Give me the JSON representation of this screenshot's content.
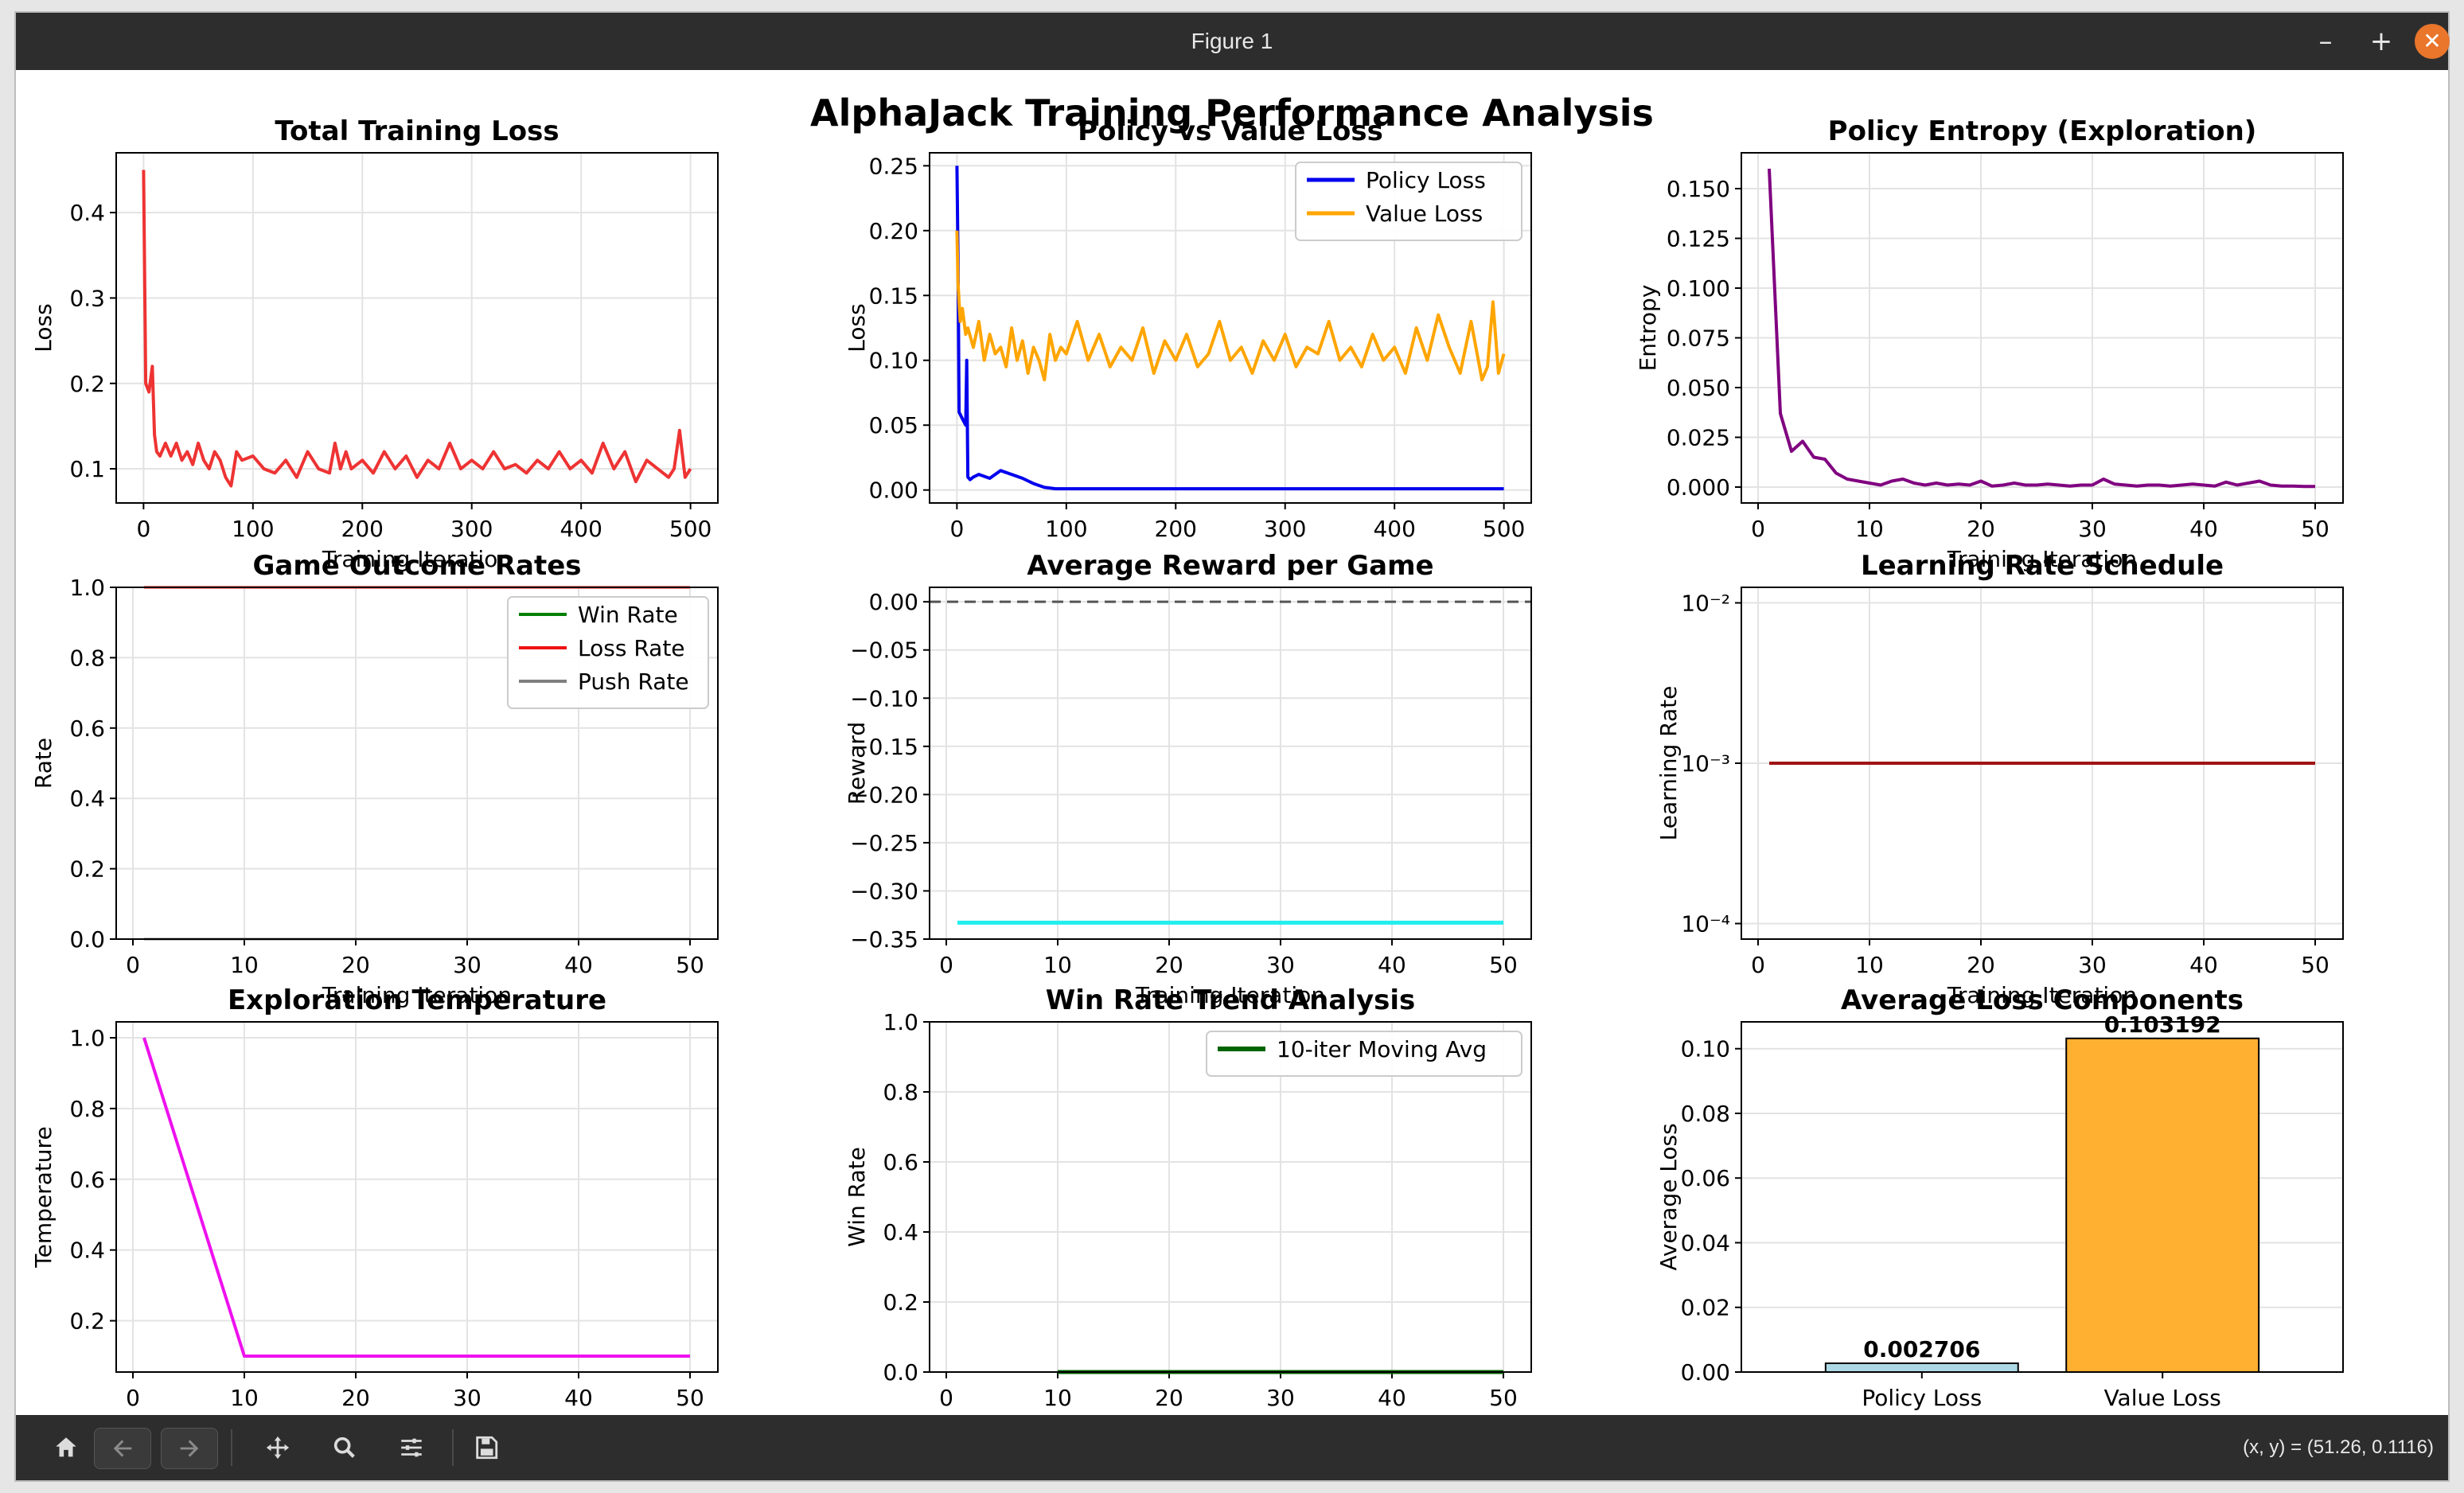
{
  "window": {
    "title": "Figure 1"
  },
  "figure": {
    "suptitle": "AlphaJack Training Performance Analysis"
  },
  "toolbar": {
    "buttons": [
      "home-icon",
      "back-icon",
      "forward-icon",
      "pan-icon",
      "zoom-icon",
      "configure-icon",
      "save-icon"
    ],
    "coords": "(x, y) = (51.26, 0.1116)"
  },
  "chart_data": [
    {
      "id": "c1",
      "type": "line",
      "title": "Total Training Loss",
      "xlabel": "Training Iteration",
      "ylabel": "Loss",
      "xlim": [
        -25,
        525
      ],
      "ylim": [
        0.06,
        0.47
      ],
      "grid": true,
      "xticks": [
        0,
        100,
        200,
        300,
        400,
        500
      ],
      "xtick_labels": [
        "0",
        "100",
        "200",
        "300",
        "400",
        "500"
      ],
      "yticks": [
        0.1,
        0.2,
        0.3,
        0.4
      ],
      "ytick_labels": [
        "0.1",
        "0.2",
        "0.3",
        "0.4"
      ],
      "series": [
        {
          "color": "#ee3333",
          "width": 4,
          "x": [
            0,
            2,
            5,
            8,
            10,
            12,
            15,
            20,
            25,
            30,
            35,
            40,
            45,
            50,
            55,
            60,
            65,
            70,
            75,
            80,
            85,
            90,
            100,
            110,
            120,
            130,
            140,
            150,
            160,
            170,
            175,
            180,
            185,
            190,
            200,
            210,
            220,
            230,
            240,
            250,
            260,
            270,
            280,
            290,
            300,
            310,
            320,
            330,
            340,
            350,
            360,
            370,
            380,
            390,
            400,
            410,
            420,
            430,
            440,
            450,
            460,
            470,
            480,
            485,
            490,
            495,
            500
          ],
          "y": [
            0.45,
            0.2,
            0.19,
            0.22,
            0.14,
            0.12,
            0.115,
            0.13,
            0.115,
            0.13,
            0.11,
            0.12,
            0.105,
            0.13,
            0.11,
            0.1,
            0.12,
            0.11,
            0.09,
            0.08,
            0.12,
            0.11,
            0.115,
            0.1,
            0.095,
            0.11,
            0.09,
            0.12,
            0.1,
            0.095,
            0.13,
            0.1,
            0.12,
            0.1,
            0.11,
            0.095,
            0.12,
            0.1,
            0.115,
            0.09,
            0.11,
            0.1,
            0.13,
            0.1,
            0.11,
            0.1,
            0.12,
            0.1,
            0.105,
            0.095,
            0.11,
            0.1,
            0.12,
            0.1,
            0.11,
            0.095,
            0.13,
            0.1,
            0.12,
            0.085,
            0.11,
            0.1,
            0.09,
            0.1,
            0.145,
            0.09,
            0.1
          ]
        }
      ]
    },
    {
      "id": "c2",
      "type": "line",
      "title": "Policy vs Value Loss",
      "xlabel": "",
      "ylabel": "Loss",
      "xlim": [
        -25,
        525
      ],
      "ylim": [
        -0.01,
        0.26
      ],
      "grid": true,
      "xticks": [
        0,
        100,
        200,
        300,
        400,
        500
      ],
      "xtick_labels": [
        "0",
        "100",
        "200",
        "300",
        "400",
        "500"
      ],
      "yticks": [
        0,
        0.05,
        0.1,
        0.15,
        0.2,
        0.25
      ],
      "ytick_labels": [
        "0.00",
        "0.05",
        "0.10",
        "0.15",
        "0.20",
        "0.25"
      ],
      "legend": {
        "position": "top-right",
        "labels": [
          "Policy Loss",
          "Value Loss"
        ]
      },
      "series": [
        {
          "name": "Policy Loss",
          "color": "#0000ee",
          "width": 4,
          "x": [
            0,
            1,
            2,
            5,
            8,
            9,
            10,
            12,
            15,
            20,
            30,
            40,
            50,
            60,
            70,
            80,
            90,
            100,
            500
          ],
          "y": [
            0.25,
            0.18,
            0.06,
            0.055,
            0.05,
            0.1,
            0.01,
            0.008,
            0.01,
            0.012,
            0.009,
            0.015,
            0.012,
            0.009,
            0.005,
            0.002,
            0.001,
            0.001,
            0.001
          ]
        },
        {
          "name": "Value Loss",
          "color": "#ffa500",
          "width": 4,
          "x": [
            0,
            1,
            3,
            5,
            8,
            10,
            15,
            20,
            25,
            30,
            35,
            40,
            45,
            50,
            55,
            60,
            65,
            70,
            75,
            80,
            85,
            90,
            95,
            100,
            110,
            120,
            130,
            140,
            150,
            160,
            170,
            180,
            190,
            200,
            210,
            220,
            230,
            240,
            250,
            260,
            270,
            280,
            290,
            300,
            310,
            320,
            330,
            340,
            350,
            360,
            370,
            380,
            390,
            400,
            410,
            420,
            430,
            440,
            450,
            460,
            470,
            480,
            485,
            490,
            495,
            500
          ],
          "y": [
            0.2,
            0.16,
            0.13,
            0.14,
            0.12,
            0.125,
            0.11,
            0.13,
            0.1,
            0.12,
            0.105,
            0.11,
            0.095,
            0.125,
            0.1,
            0.115,
            0.09,
            0.11,
            0.1,
            0.085,
            0.12,
            0.1,
            0.11,
            0.105,
            0.13,
            0.1,
            0.12,
            0.095,
            0.11,
            0.1,
            0.125,
            0.09,
            0.115,
            0.1,
            0.12,
            0.095,
            0.105,
            0.13,
            0.1,
            0.11,
            0.09,
            0.115,
            0.1,
            0.12,
            0.095,
            0.11,
            0.105,
            0.13,
            0.1,
            0.11,
            0.095,
            0.12,
            0.1,
            0.11,
            0.09,
            0.125,
            0.1,
            0.135,
            0.11,
            0.09,
            0.13,
            0.085,
            0.095,
            0.145,
            0.09,
            0.105
          ]
        }
      ]
    },
    {
      "id": "c3",
      "type": "line",
      "title": "Policy Entropy (Exploration)",
      "xlabel": "Training Iteration",
      "ylabel": "Entropy",
      "xlim": [
        -1.5,
        52.5
      ],
      "ylim": [
        -0.008,
        0.168
      ],
      "grid": true,
      "xticks": [
        0,
        10,
        20,
        30,
        40,
        50
      ],
      "xtick_labels": [
        "0",
        "10",
        "20",
        "30",
        "40",
        "50"
      ],
      "yticks": [
        0,
        0.025,
        0.05,
        0.075,
        0.1,
        0.125,
        0.15
      ],
      "ytick_labels": [
        "0.000",
        "0.025",
        "0.050",
        "0.075",
        "0.100",
        "0.125",
        "0.150"
      ],
      "series": [
        {
          "color": "#800080",
          "width": 4,
          "x": [
            1,
            2,
            3,
            4,
            5,
            6,
            7,
            8,
            9,
            10,
            11,
            12,
            13,
            14,
            15,
            16,
            17,
            18,
            19,
            20,
            21,
            22,
            23,
            24,
            25,
            26,
            27,
            28,
            29,
            30,
            31,
            32,
            33,
            34,
            35,
            36,
            37,
            38,
            39,
            40,
            41,
            42,
            43,
            44,
            45,
            46,
            47,
            48,
            49,
            50
          ],
          "y": [
            0.16,
            0.037,
            0.018,
            0.023,
            0.015,
            0.014,
            0.007,
            0.004,
            0.003,
            0.002,
            0.001,
            0.003,
            0.004,
            0.002,
            0.001,
            0.002,
            0.001,
            0.0015,
            0.001,
            0.003,
            0.0005,
            0.001,
            0.002,
            0.001,
            0.001,
            0.0015,
            0.001,
            0.0005,
            0.001,
            0.001,
            0.004,
            0.0015,
            0.001,
            0.0005,
            0.001,
            0.001,
            0.0005,
            0.001,
            0.0015,
            0.001,
            0.0005,
            0.0025,
            0.001,
            0.002,
            0.003,
            0.001,
            0.0005,
            0.0005,
            0.0003,
            0.0003
          ]
        }
      ]
    },
    {
      "id": "c4",
      "type": "line",
      "title": "Game Outcome Rates",
      "xlabel": "Training Iteration",
      "ylabel": "Rate",
      "xlim": [
        -1.5,
        52.5
      ],
      "ylim": [
        0,
        1
      ],
      "grid": true,
      "xticks": [
        0,
        10,
        20,
        30,
        40,
        50
      ],
      "xtick_labels": [
        "0",
        "10",
        "20",
        "30",
        "40",
        "50"
      ],
      "yticks": [
        0,
        0.2,
        0.4,
        0.6,
        0.8,
        1.0
      ],
      "ytick_labels": [
        "0.0",
        "0.2",
        "0.4",
        "0.6",
        "0.8",
        "1.0"
      ],
      "legend": {
        "position": "top-right",
        "labels": [
          "Win Rate",
          "Loss Rate",
          "Push Rate"
        ]
      },
      "series": [
        {
          "name": "Win Rate",
          "color": "#008000",
          "width": 3,
          "x": [
            1,
            50
          ],
          "y": [
            0,
            0
          ]
        },
        {
          "name": "Loss Rate",
          "color": "#ee1111",
          "width": 3,
          "x": [
            1,
            50
          ],
          "y": [
            1,
            1
          ]
        },
        {
          "name": "Push Rate",
          "color": "#808080",
          "width": 3,
          "x": [
            1,
            50
          ],
          "y": [
            0,
            0
          ]
        }
      ]
    },
    {
      "id": "c5",
      "type": "line",
      "title": "Average Reward per Game",
      "xlabel": "Training Iteration",
      "ylabel": "Reward",
      "xlim": [
        -1.5,
        52.5
      ],
      "ylim": [
        -0.35,
        0.015
      ],
      "grid": true,
      "xticks": [
        0,
        10,
        20,
        30,
        40,
        50
      ],
      "xtick_labels": [
        "0",
        "10",
        "20",
        "30",
        "40",
        "50"
      ],
      "yticks": [
        0,
        -0.05,
        -0.1,
        -0.15,
        -0.2,
        -0.25,
        -0.3,
        -0.35
      ],
      "ytick_labels": [
        "0.00",
        "−0.05",
        "−0.10",
        "−0.15",
        "−0.20",
        "−0.25",
        "−0.30",
        "−0.35"
      ],
      "hline": {
        "y": 0,
        "color": "#555555",
        "dashed": true
      },
      "series": [
        {
          "color": "#22eeee",
          "width": 5,
          "x": [
            1,
            50
          ],
          "y": [
            -0.333,
            -0.333
          ]
        }
      ]
    },
    {
      "id": "c6",
      "type": "line",
      "yscale": "log",
      "title": "Learning Rate Schedule",
      "xlabel": "Training Iteration",
      "ylabel": "Learning Rate",
      "xlim": [
        -1.5,
        52.5
      ],
      "ylim": [
        8e-05,
        0.0125
      ],
      "grid": true,
      "xticks": [
        0,
        10,
        20,
        30,
        40,
        50
      ],
      "xtick_labels": [
        "0",
        "10",
        "20",
        "30",
        "40",
        "50"
      ],
      "yticks": [
        0.0001,
        0.001,
        0.01
      ],
      "ytick_labels": [
        "10⁻⁴",
        "10⁻³",
        "10⁻²"
      ],
      "series": [
        {
          "color": "#a01414",
          "width": 4,
          "x": [
            1,
            50
          ],
          "y": [
            0.001,
            0.001
          ]
        }
      ]
    },
    {
      "id": "c7",
      "type": "line",
      "title": "Exploration Temperature",
      "xlabel": "Training Iteration",
      "ylabel": "Temperature",
      "xlim": [
        -1.5,
        52.5
      ],
      "ylim": [
        0.055,
        1.045
      ],
      "grid": true,
      "xticks": [
        0,
        10,
        20,
        30,
        40,
        50
      ],
      "xtick_labels": [
        "0",
        "10",
        "20",
        "30",
        "40",
        "50"
      ],
      "yticks": [
        0.2,
        0.4,
        0.6,
        0.8,
        1.0
      ],
      "ytick_labels": [
        "0.2",
        "0.4",
        "0.6",
        "0.8",
        "1.0"
      ],
      "series": [
        {
          "color": "#ee11ee",
          "width": 4,
          "x": [
            1,
            10,
            50
          ],
          "y": [
            1.0,
            0.1,
            0.1
          ]
        }
      ]
    },
    {
      "id": "c8",
      "type": "line",
      "title": "Win Rate Trend Analysis",
      "xlabel": "Training Iteration",
      "ylabel": "Win Rate",
      "xlim": [
        -1.5,
        52.5
      ],
      "ylim": [
        0,
        1
      ],
      "grid": true,
      "xticks": [
        0,
        10,
        20,
        30,
        40,
        50
      ],
      "xtick_labels": [
        "0",
        "10",
        "20",
        "30",
        "40",
        "50"
      ],
      "yticks": [
        0,
        0.2,
        0.4,
        0.6,
        0.8,
        1.0
      ],
      "ytick_labels": [
        "0.0",
        "0.2",
        "0.4",
        "0.6",
        "0.8",
        "1.0"
      ],
      "legend": {
        "position": "top-right",
        "labels": [
          "10-iter Moving Avg"
        ]
      },
      "series": [
        {
          "name": "10-iter Moving Avg",
          "color": "#006400",
          "width": 5,
          "x": [
            10,
            50
          ],
          "y": [
            0,
            0
          ]
        }
      ]
    },
    {
      "id": "c9",
      "type": "bar",
      "title": "Average Loss Components",
      "xlabel": "",
      "ylabel": "Average Loss",
      "ylim": [
        0,
        0.1083
      ],
      "grid": true,
      "categories": [
        "Policy Loss",
        "Value Loss"
      ],
      "values": [
        0.002706,
        0.103192
      ],
      "value_labels": [
        "0.002706",
        "0.103192"
      ],
      "colors": [
        "#add8e6",
        "#ffb030"
      ],
      "yticks": [
        0,
        0.02,
        0.04,
        0.06,
        0.08,
        0.1
      ],
      "ytick_labels": [
        "0.00",
        "0.02",
        "0.04",
        "0.06",
        "0.08",
        "0.10"
      ]
    }
  ]
}
